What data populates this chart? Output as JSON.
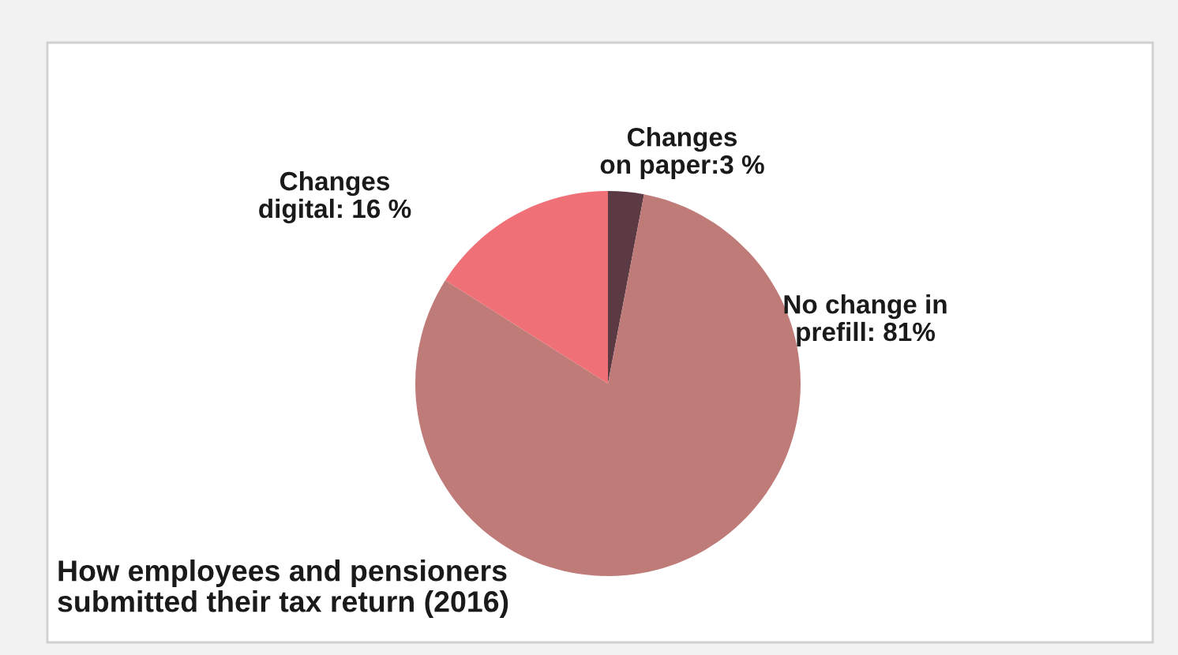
{
  "chart_data": {
    "type": "pie",
    "title": "How employees and pensioners\nsubmitted their tax return (2016)",
    "categories": [
      "Changes\non paper:3 %",
      "No change in\nprefill: 81%",
      "Changes\ndigital: 16 %"
    ],
    "values": [
      3,
      81,
      16
    ],
    "colors": [
      "#5c3a44",
      "#bf7b78",
      "#f07078"
    ]
  }
}
